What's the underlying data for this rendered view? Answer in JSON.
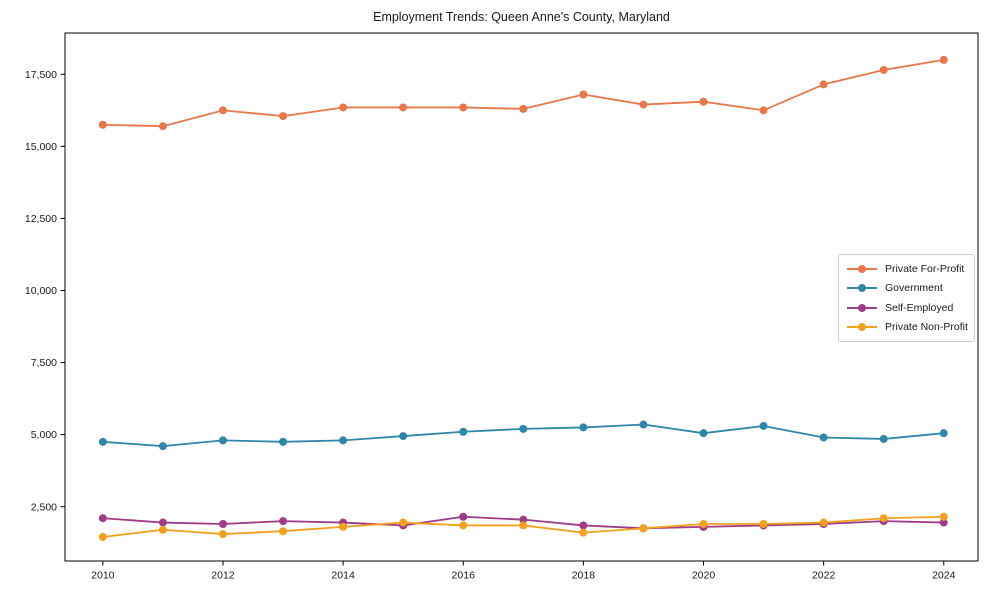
{
  "page": {
    "background_color": "#ffffff"
  },
  "chart_data": {
    "type": "line",
    "title": "Employment Trends: Queen Anne's County, Maryland",
    "xlabel": "",
    "ylabel": "",
    "x": [
      2010,
      2011,
      2012,
      2013,
      2014,
      2015,
      2016,
      2017,
      2018,
      2019,
      2020,
      2021,
      2022,
      2023,
      2024
    ],
    "series": [
      {
        "name": "Private For-Profit",
        "color": "#e8784a",
        "values": [
          15750,
          15700,
          16250,
          16050,
          16350,
          16350,
          16350,
          16300,
          16800,
          16450,
          16550,
          16250,
          17150,
          17650,
          18000
        ]
      },
      {
        "name": "Government",
        "color": "#2e87a8",
        "values": [
          4750,
          4600,
          4800,
          4750,
          4800,
          4950,
          5100,
          5200,
          5250,
          5350,
          5050,
          5300,
          4900,
          4850,
          5050
        ]
      },
      {
        "name": "Self-Employed",
        "color": "#9e3c87",
        "values": [
          2100,
          1950,
          1900,
          2000,
          1950,
          1850,
          2150,
          2050,
          1850,
          1750,
          1800,
          1850,
          1900,
          2000,
          1950
        ]
      },
      {
        "name": "Private Non-Profit",
        "color": "#f2a01e",
        "values": [
          1450,
          1700,
          1550,
          1650,
          1800,
          1950,
          1850,
          1850,
          1600,
          1750,
          1900,
          1900,
          1950,
          2100,
          2150
        ]
      }
    ],
    "x_ticks": [
      2010,
      2012,
      2014,
      2016,
      2018,
      2020,
      2022,
      2024
    ],
    "x_tick_labels": [
      "2010",
      "2012",
      "2014",
      "2016",
      "2018",
      "2020",
      "2022",
      "2024"
    ],
    "y_ticks": [
      2500,
      5000,
      7500,
      10000,
      12500,
      15000,
      17500
    ],
    "y_tick_labels": [
      "2,500",
      "5,000",
      "7,500",
      "10,000",
      "12,500",
      "15,000",
      "17,500"
    ],
    "xlim": [
      2009.37,
      2024.57
    ],
    "ylim": [
      616,
      18933
    ],
    "grid": false,
    "legend_position": "right-center-inside",
    "marker": "circle",
    "line_width": 1.8,
    "marker_radius": 4,
    "axis_color": "#000000",
    "text_color": "#1a1a1a",
    "legend_border_color": "#cccccc"
  }
}
